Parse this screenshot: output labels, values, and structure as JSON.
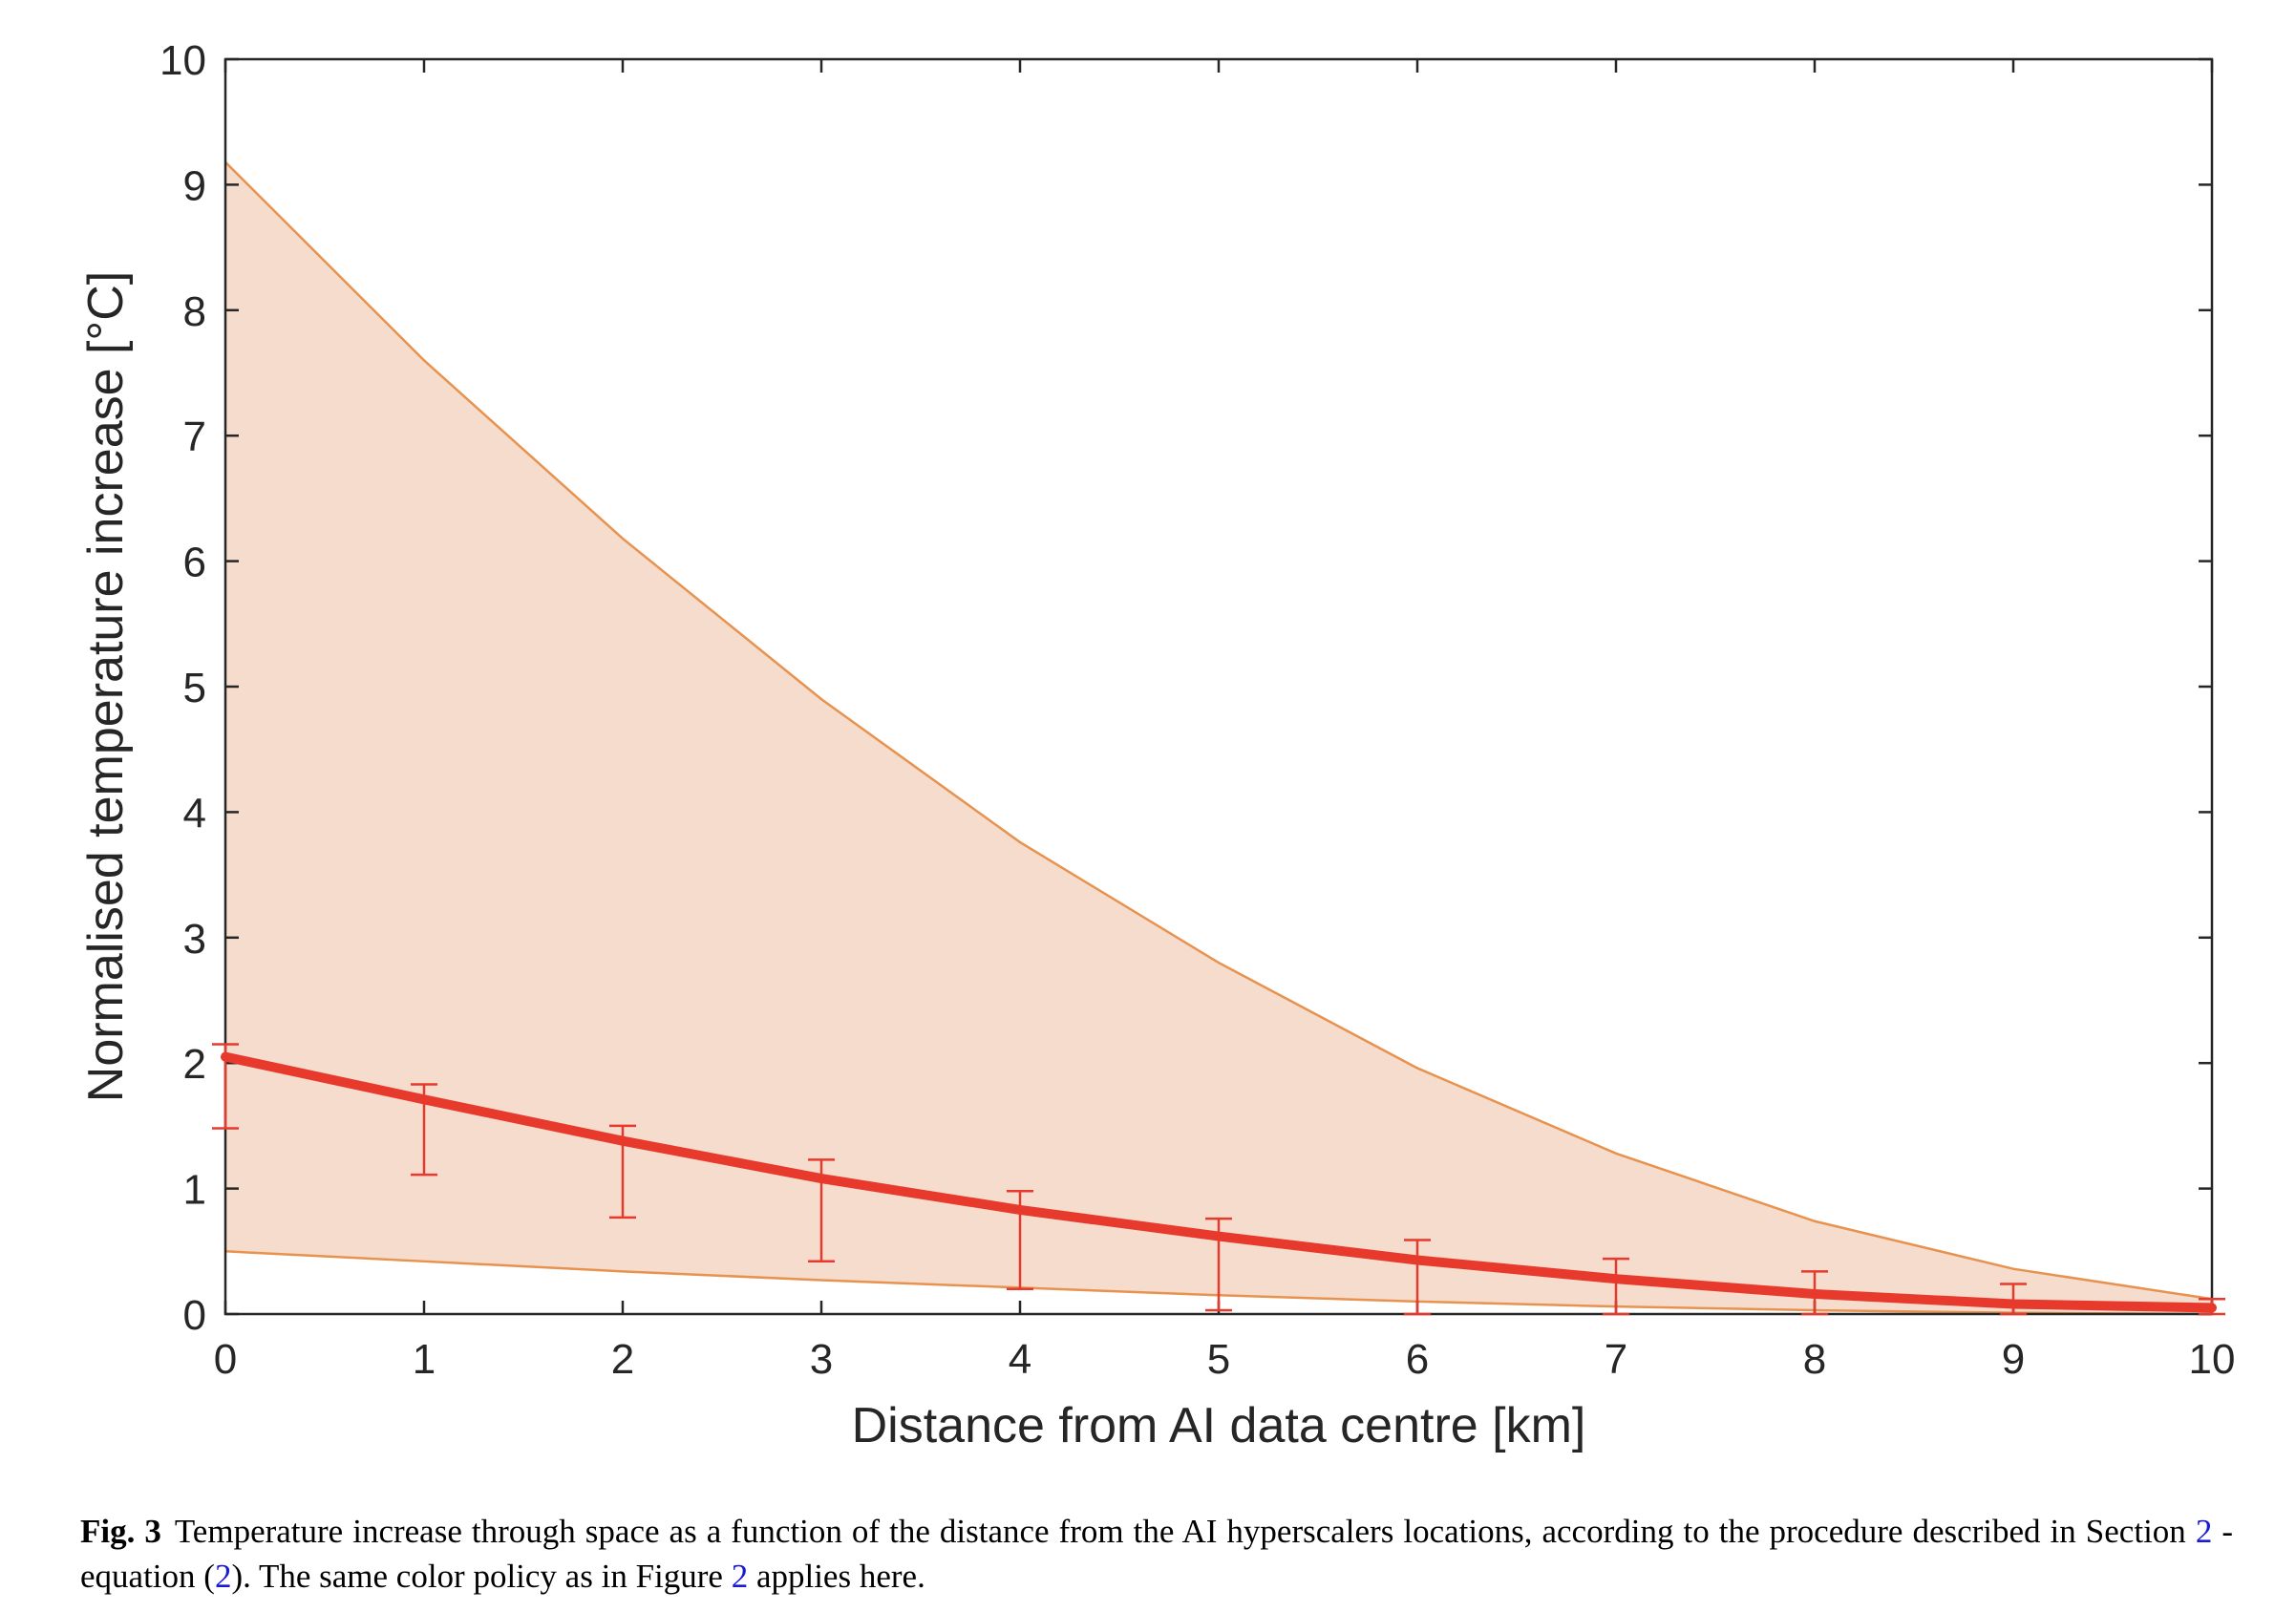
{
  "chart_data": {
    "type": "line",
    "xlabel": "Distance from AI data centre [km]",
    "ylabel": "Normalised temperature increase [°C]",
    "xlim": [
      0,
      10
    ],
    "ylim": [
      0,
      10
    ],
    "x_ticks": [
      "0",
      "1",
      "2",
      "3",
      "4",
      "5",
      "6",
      "7",
      "8",
      "9",
      "10"
    ],
    "y_ticks": [
      "0",
      "1",
      "2",
      "3",
      "4",
      "5",
      "6",
      "7",
      "8",
      "9",
      "10"
    ],
    "grid": false,
    "x": [
      0,
      1,
      2,
      3,
      4,
      5,
      6,
      7,
      8,
      9,
      10
    ],
    "series": [
      {
        "type": "band",
        "upper": [
          9.18,
          7.6,
          6.18,
          4.9,
          3.76,
          2.8,
          1.96,
          1.28,
          0.74,
          0.36,
          0.12
        ],
        "lower": [
          0.5,
          0.42,
          0.34,
          0.27,
          0.21,
          0.15,
          0.1,
          0.06,
          0.03,
          0.01,
          0.0
        ],
        "fill_color": "#f5dccc",
        "edge_color": "#e8924f"
      },
      {
        "type": "line",
        "values": [
          2.05,
          1.71,
          1.38,
          1.08,
          0.83,
          0.62,
          0.43,
          0.28,
          0.16,
          0.08,
          0.05
        ],
        "error_upper": [
          2.15,
          1.83,
          1.5,
          1.23,
          0.98,
          0.76,
          0.59,
          0.44,
          0.34,
          0.24,
          0.12
        ],
        "error_lower": [
          1.48,
          1.11,
          0.77,
          0.42,
          0.2,
          0.03,
          0.0,
          0.0,
          0.0,
          0.0,
          0.0
        ],
        "color": "#e83a2c"
      }
    ]
  },
  "caption": {
    "label": "Fig. 3",
    "text_1": "Temperature increase through space as a function of the distance from the AI hyperscalers locations, according to the procedure described in Section ",
    "ref_section": "2",
    "text_2": " - equation (",
    "ref_equation": "2",
    "text_3": "). The same color policy as in Figure ",
    "ref_figure": "2",
    "text_4": " applies here."
  }
}
